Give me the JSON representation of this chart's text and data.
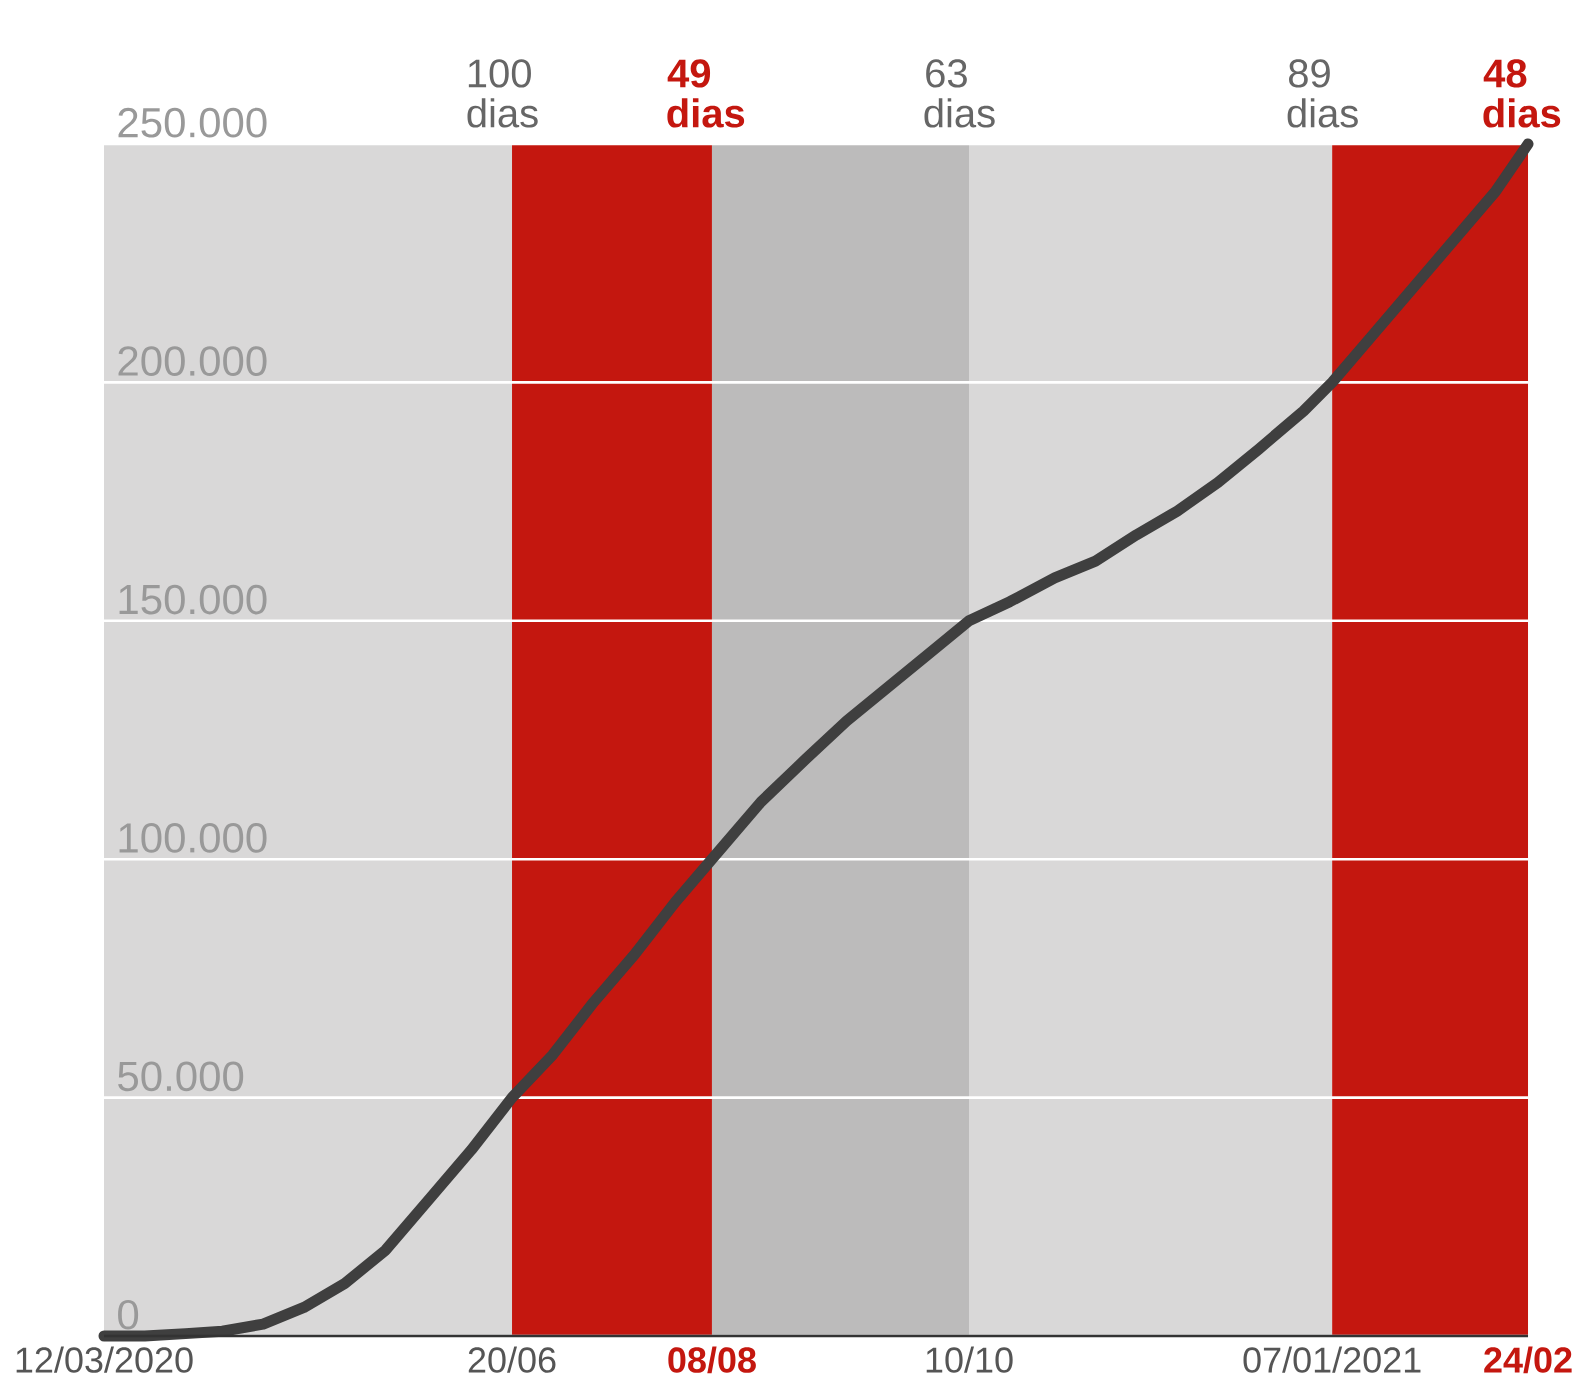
{
  "chart_data": {
    "type": "line",
    "x": [
      "2020-03-12",
      "2020-03-22",
      "2020-04-01",
      "2020-04-10",
      "2020-04-20",
      "2020-04-30",
      "2020-05-10",
      "2020-05-20",
      "2020-05-31",
      "2020-06-10",
      "2020-06-20",
      "2020-06-30",
      "2020-07-10",
      "2020-07-20",
      "2020-07-30",
      "2020-08-08",
      "2020-08-20",
      "2020-08-31",
      "2020-09-10",
      "2020-09-20",
      "2020-09-30",
      "2020-10-10",
      "2020-10-20",
      "2020-10-31",
      "2020-11-10",
      "2020-11-20",
      "2020-11-30",
      "2020-12-10",
      "2020-12-20",
      "2020-12-31",
      "2021-01-07",
      "2021-01-17",
      "2021-01-27",
      "2021-02-06",
      "2021-02-16",
      "2021-02-24"
    ],
    "series": [
      {
        "color": "#3f3f3f",
        "values": [
          0,
          0,
          500,
          1000,
          2500,
          6000,
          11000,
          18000,
          29000,
          39000,
          50000,
          59000,
          70000,
          80000,
          91000,
          100000,
          112000,
          121000,
          129000,
          136000,
          143000,
          150000,
          154000,
          159000,
          162500,
          168000,
          173000,
          179000,
          186000,
          194000,
          200000,
          210000,
          220000,
          230000,
          240000,
          250000
        ]
      }
    ],
    "xlim": [
      "2020-03-12",
      "2021-02-24"
    ],
    "xticks": [
      {
        "value": "2020-03-12",
        "label": "12/03/2020"
      },
      {
        "value": "2020-06-20",
        "label": "20/06"
      },
      {
        "value": "2020-08-08",
        "label": "08/08"
      },
      {
        "value": "2020-10-10",
        "label": "10/10"
      },
      {
        "value": "2021-01-07",
        "label": "07/01/2021"
      },
      {
        "value": "2021-02-24",
        "label": "24/02"
      }
    ],
    "ylim": [
      0,
      250000
    ],
    "yticks": [
      0,
      {
        "value": 50000,
        "label": "50.000"
      },
      {
        "value": 100000,
        "label": "100.000"
      },
      {
        "value": 150000,
        "label": "150.000"
      },
      {
        "value": 200000,
        "label": "200.000"
      },
      {
        "value": 250000,
        "label": "250.000"
      }
    ],
    "bands": [
      {
        "axis": "x",
        "from": "2020-03-12",
        "to": "2020-06-20",
        "label": "100 dias",
        "color": "#d9d8d8"
      },
      {
        "axis": "x",
        "from": "2020-06-20",
        "to": "2020-08-08",
        "label": "49 dias",
        "color": "#c4170f"
      },
      {
        "axis": "x",
        "from": "2020-08-08",
        "to": "2020-10-10",
        "label": "63 dias",
        "color": "#bcbbbb"
      },
      {
        "axis": "x",
        "from": "2020-10-10",
        "to": "2021-01-07",
        "label": "89 dias",
        "color": "#d9d8d8"
      },
      {
        "axis": "x",
        "from": "2021-01-07",
        "to": "2021-02-24",
        "label": "48 dias",
        "color": "#c4170f"
      }
    ],
    "grid": "y",
    "marker": "none",
    "line_style": "solid"
  }
}
